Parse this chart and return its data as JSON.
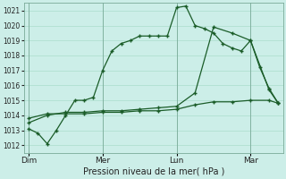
{
  "bg_color": "#cceee8",
  "grid_color": "#aaddcc",
  "line_color": "#1a5c28",
  "title": "Pression niveau de la mer( hPa )",
  "ylim": [
    1011.5,
    1021.5
  ],
  "yticks": [
    1012,
    1013,
    1014,
    1015,
    1016,
    1017,
    1018,
    1019,
    1020,
    1021
  ],
  "day_labels": [
    "Dim",
    "Mer",
    "Lun",
    "Mar"
  ],
  "day_positions": [
    0,
    8,
    16,
    24
  ],
  "xlim": [
    -0.5,
    27.5
  ],
  "line1_x": [
    0,
    1,
    2,
    3,
    4,
    5,
    6,
    7,
    8,
    9,
    10,
    11,
    12,
    13,
    14,
    15,
    16,
    17,
    18,
    19,
    20,
    21,
    22,
    23,
    24,
    25,
    26,
    27
  ],
  "line1_y": [
    1013.1,
    1012.8,
    1012.1,
    1013.0,
    1014.0,
    1015.0,
    1015.0,
    1015.2,
    1017.0,
    1018.3,
    1018.8,
    1019.0,
    1019.3,
    1019.3,
    1019.3,
    1019.3,
    1021.2,
    1021.3,
    1020.0,
    1019.8,
    1019.5,
    1018.8,
    1018.5,
    1018.3,
    1019.0,
    1017.2,
    1015.8,
    1014.8
  ],
  "line2_x": [
    0,
    2,
    4,
    6,
    8,
    10,
    12,
    14,
    16,
    18,
    20,
    22,
    24,
    26,
    27
  ],
  "line2_y": [
    1013.5,
    1014.0,
    1014.2,
    1014.2,
    1014.3,
    1014.3,
    1014.4,
    1014.5,
    1014.6,
    1015.5,
    1019.9,
    1019.5,
    1019.0,
    1015.7,
    1014.8
  ],
  "line3_x": [
    0,
    2,
    4,
    6,
    8,
    10,
    12,
    14,
    16,
    18,
    20,
    22,
    24,
    26,
    27
  ],
  "line3_y": [
    1013.8,
    1014.1,
    1014.1,
    1014.1,
    1014.2,
    1014.2,
    1014.3,
    1014.3,
    1014.4,
    1014.7,
    1014.9,
    1014.9,
    1015.0,
    1015.0,
    1014.8
  ],
  "vline_positions": [
    0,
    8,
    16,
    24
  ]
}
